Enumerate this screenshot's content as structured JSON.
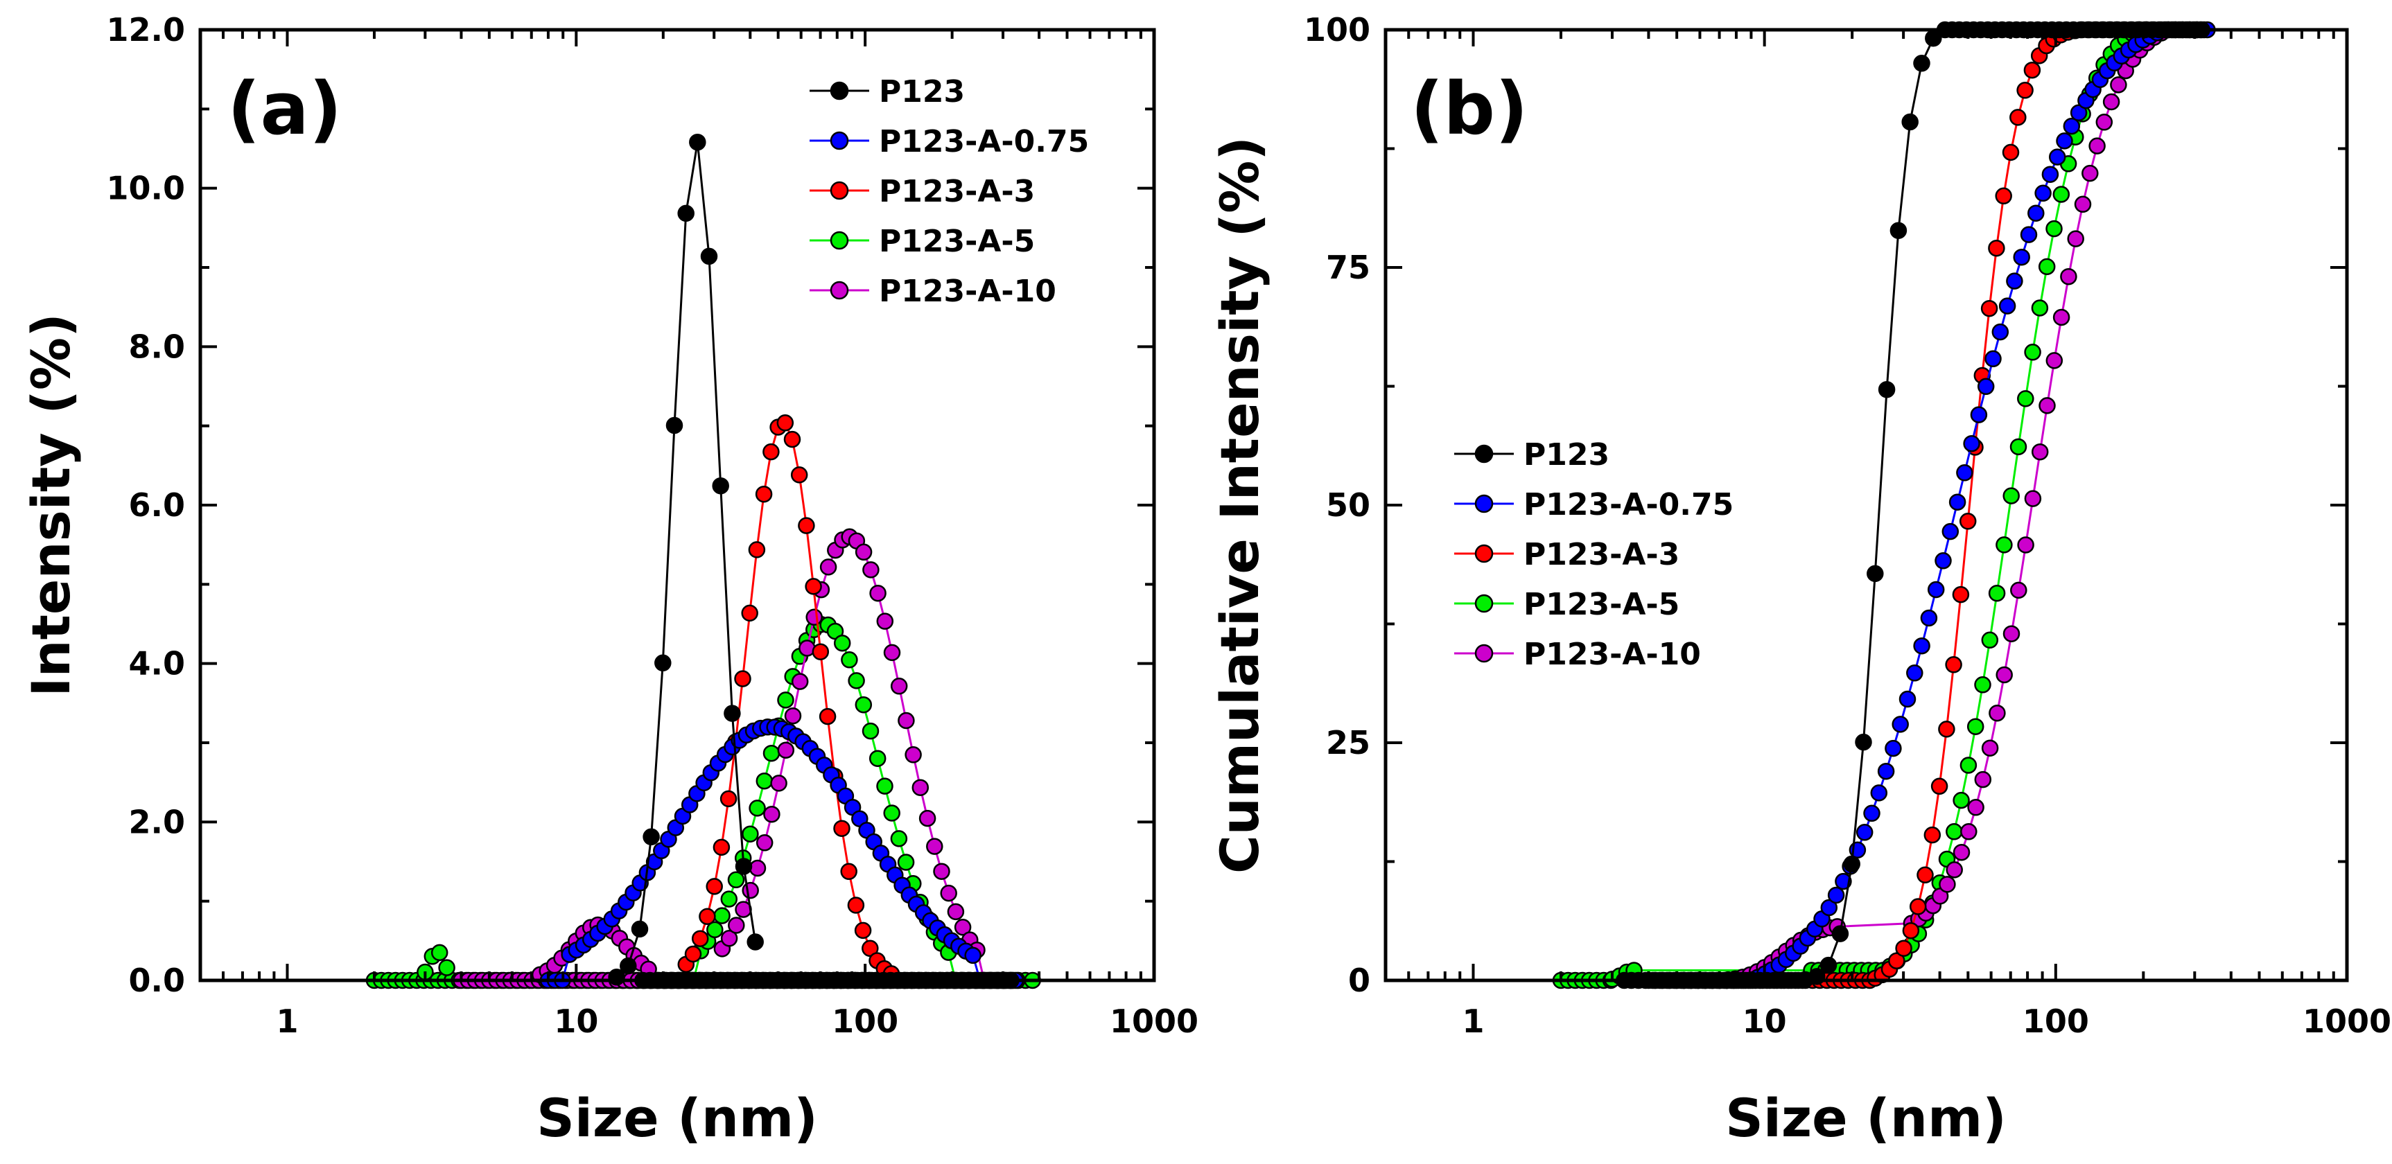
{
  "figure_title": "",
  "chart_data": [
    {
      "type": "scatter",
      "panel_label": "(a)",
      "title": "",
      "xlabel": "Size (nm)",
      "ylabel": "Intensity (%)",
      "xscale": "log",
      "xlim": [
        0.5,
        1000
      ],
      "ylim": [
        0,
        12
      ],
      "x_tick_labels": [
        "1",
        "10",
        "100",
        "1000"
      ],
      "y_tick_labels": [
        "0.0",
        "2.0",
        "4.0",
        "6.0",
        "8.0",
        "10.0",
        "12.0"
      ],
      "legend_position": "top-right",
      "series": [
        {
          "name": "P123",
          "color": "#000000",
          "kind": "lognormal",
          "peak": 10.6,
          "mode": 26,
          "sigma": 0.19,
          "xmin": 13.8,
          "xmax": 43,
          "step": 0.04
        },
        {
          "name": "P123-A-0.75",
          "color": "#0000ff",
          "kind": "lognormal",
          "peak": 3.2,
          "mode": 47,
          "sigma": 0.75,
          "xmin": 8,
          "xmax": 340,
          "step": 0.0245,
          "clip_low": 0.3
        },
        {
          "name": "P123-A-3",
          "color": "#ff0000",
          "kind": "lognormal",
          "peak": 7.05,
          "mode": 52,
          "sigma": 0.29,
          "xmin": 24,
          "xmax": 128,
          "step": 0.0245
        },
        {
          "name": "P123-A-5",
          "color": "#00ee00",
          "kind": "lognormal",
          "peak": 4.5,
          "mode": 72,
          "sigma": 0.44,
          "xmin": 14.5,
          "xmax": 290,
          "step": 0.0245,
          "clip_low": 0.3,
          "extra_bump": {
            "mode": 3.3,
            "peak": 0.37,
            "xmin": 3.0,
            "xmax": 3.65
          }
        },
        {
          "name": "P123-A-10",
          "color": "#cc00cc",
          "kind": "lognormal",
          "peak": 5.6,
          "mode": 88,
          "sigma": 0.44,
          "xmin": 32,
          "xmax": 340,
          "step": 0.0245,
          "clip_low": 0.3,
          "extra_bump": {
            "mode": 12,
            "peak": 0.7,
            "sigma": 0.22,
            "xmin": 7.5,
            "xmax": 18.5
          }
        }
      ],
      "baseline_segments": [
        {
          "series": "P123-A-5",
          "from": 2,
          "to": 400
        },
        {
          "series": "P123-A-10",
          "from": 4,
          "to": 340
        },
        {
          "series": "P123",
          "from": 17,
          "to": 330
        },
        {
          "series": "P123-A-3",
          "from": 20,
          "to": 330
        },
        {
          "series": "P123-A-0.75",
          "from": 300,
          "to": 340
        }
      ]
    },
    {
      "type": "scatter",
      "panel_label": "(b)",
      "title": "",
      "xlabel": "Size (nm)",
      "ylabel": "Cumulative Intensity (%)",
      "xscale": "log",
      "xlim": [
        0.5,
        1000
      ],
      "ylim": [
        0,
        100
      ],
      "x_tick_labels": [
        "1",
        "10",
        "100",
        "1000"
      ],
      "y_tick_labels": [
        "0",
        "25",
        "50",
        "75",
        "100"
      ],
      "legend_position": "center-left",
      "series": [
        {
          "name": "P123",
          "color": "#000000",
          "kind": "cumulative"
        },
        {
          "name": "P123-A-0.75",
          "color": "#0000ff",
          "kind": "cumulative"
        },
        {
          "name": "P123-A-3",
          "color": "#ff0000",
          "kind": "cumulative"
        },
        {
          "name": "P123-A-5",
          "color": "#00ee00",
          "kind": "cumulative"
        },
        {
          "name": "P123-A-10",
          "color": "#cc00cc",
          "kind": "cumulative"
        }
      ]
    }
  ]
}
